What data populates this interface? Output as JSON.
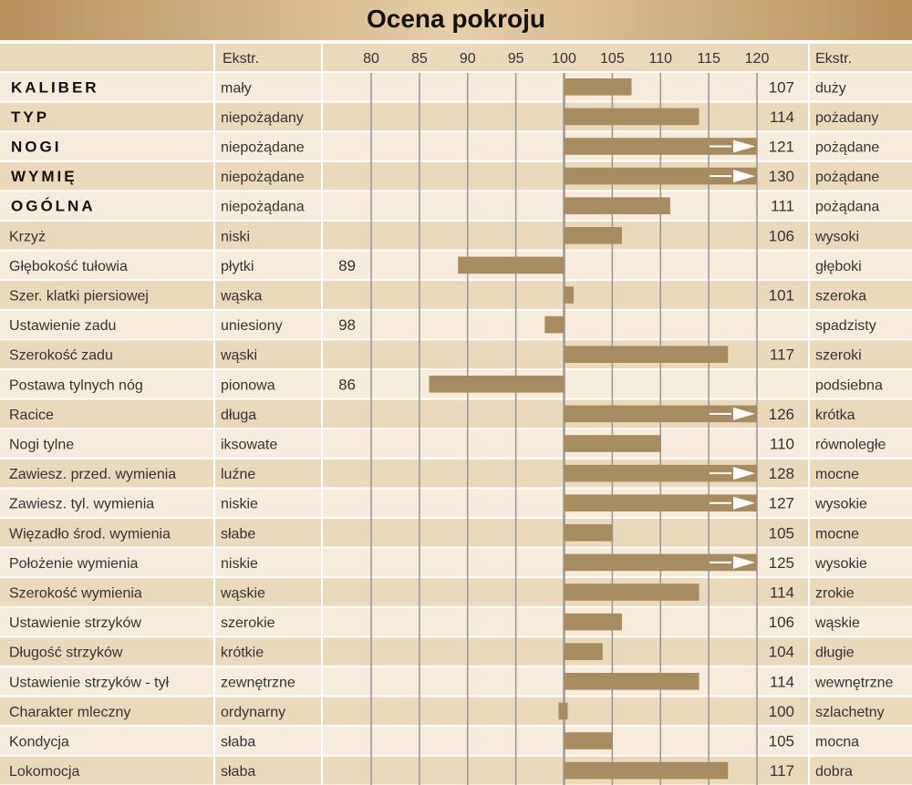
{
  "title": "Ocena pokroju",
  "header": {
    "low_label": "Ekstr.",
    "high_label": "Ekstr."
  },
  "colors": {
    "title_bg": "#c9a87a",
    "header_bg": "#ead9bb",
    "row_light": "#f6ecdd",
    "row_dark": "#ead9bb",
    "bar": "#a88b5e",
    "grid": "#9a9a9a",
    "arrow": "#ffffff"
  },
  "chart_data": {
    "type": "bar",
    "orientation": "horizontal",
    "baseline": 100,
    "xlim": [
      80,
      120
    ],
    "xticks": [
      80,
      85,
      90,
      95,
      100,
      105,
      110,
      115,
      120
    ],
    "overflow_marker": "arrow at axis end for values above 120",
    "traits": [
      {
        "name": "KALIBER",
        "bold": true,
        "low": "mały",
        "high": "duży",
        "value": 107
      },
      {
        "name": "TYP",
        "bold": true,
        "low": "niepożądany",
        "high": "pożadany",
        "value": 114
      },
      {
        "name": "NOGI",
        "bold": true,
        "low": "niepożądane",
        "high": "pożądane",
        "value": 121
      },
      {
        "name": "WYMIĘ",
        "bold": true,
        "low": "niepożądane",
        "high": "pożądane",
        "value": 130
      },
      {
        "name": "OGÓLNA",
        "bold": true,
        "low": "niepożądana",
        "high": "pożądana",
        "value": 111
      },
      {
        "name": "Krzyż",
        "bold": false,
        "low": "niski",
        "high": "wysoki",
        "value": 106
      },
      {
        "name": "Głębokość tułowia",
        "bold": false,
        "low": "płytki",
        "high": "głęboki",
        "value": 89
      },
      {
        "name": "Szer. klatki piersiowej",
        "bold": false,
        "low": "wąska",
        "high": "szeroka",
        "value": 101
      },
      {
        "name": "Ustawienie zadu",
        "bold": false,
        "low": "uniesiony",
        "high": "spadzisty",
        "value": 98
      },
      {
        "name": "Szerokość zadu",
        "bold": false,
        "low": "wąski",
        "high": "szeroki",
        "value": 117
      },
      {
        "name": "Postawa tylnych nóg",
        "bold": false,
        "low": "pionowa",
        "high": "podsiebna",
        "value": 86
      },
      {
        "name": "Racice",
        "bold": false,
        "low": "długa",
        "high": "krótka",
        "value": 126
      },
      {
        "name": "Nogi tylne",
        "bold": false,
        "low": "iksowate",
        "high": "równoległe",
        "value": 110
      },
      {
        "name": "Zawiesz. przed. wymienia",
        "bold": false,
        "low": "luźne",
        "high": "mocne",
        "value": 128
      },
      {
        "name": "Zawiesz. tyl. wymienia",
        "bold": false,
        "low": "niskie",
        "high": "wysokie",
        "value": 127
      },
      {
        "name": "Więzadło środ. wymienia",
        "bold": false,
        "low": "słabe",
        "high": "mocne",
        "value": 105
      },
      {
        "name": "Położenie wymienia",
        "bold": false,
        "low": "niskie",
        "high": "wysokie",
        "value": 125
      },
      {
        "name": "Szerokość wymienia",
        "bold": false,
        "low": "wąskie",
        "high": "zrokie",
        "value": 114
      },
      {
        "name": "Ustawienie strzyków",
        "bold": false,
        "low": "szerokie",
        "high": "wąskie",
        "value": 106
      },
      {
        "name": "Długość strzyków",
        "bold": false,
        "low": "krótkie",
        "high": "długie",
        "value": 104
      },
      {
        "name": "Ustawienie strzyków - tył",
        "bold": false,
        "low": "zewnętrzne",
        "high": "wewnętrzne",
        "value": 114
      },
      {
        "name": "Charakter mleczny",
        "bold": false,
        "low": "ordynarny",
        "high": "szlachetny",
        "value": 100
      },
      {
        "name": "Kondycja",
        "bold": false,
        "low": "słaba",
        "high": "mocna",
        "value": 105
      },
      {
        "name": "Lokomocja",
        "bold": false,
        "low": "słaba",
        "high": "dobra",
        "value": 117
      }
    ]
  }
}
